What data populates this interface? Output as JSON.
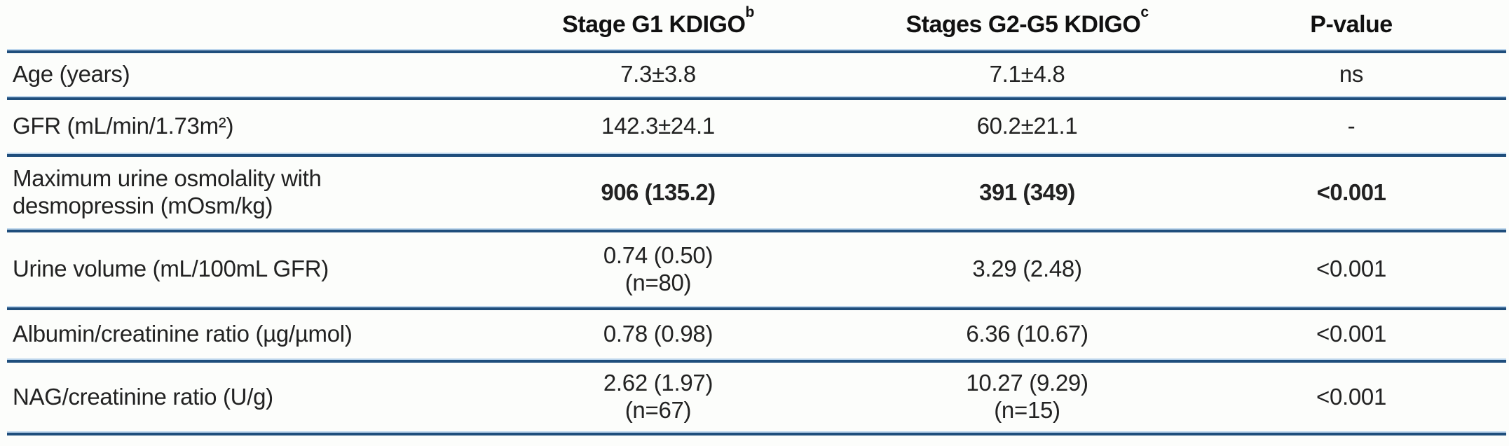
{
  "colors": {
    "rule_dark": "#1f4e7c",
    "rule_light": "#bcd5ec",
    "text": "#222222",
    "header_text": "#111111",
    "background": "#fcfdfb"
  },
  "table": {
    "headers": {
      "col1": "",
      "col2": {
        "text": "Stage G1 KDIGO",
        "sup": "b"
      },
      "col3": {
        "text": "Stages G2-G5 KDIGO",
        "sup": "c"
      },
      "col4": {
        "text": "P-value",
        "sup": ""
      }
    },
    "rows": [
      {
        "label": "Age (years)",
        "label2": "",
        "g1": "7.3±3.8",
        "g1b": "",
        "g25": "7.1±4.8",
        "g25b": "",
        "p": "ns",
        "pb": "",
        "emphasis": false
      },
      {
        "label": "GFR (mL/min/1.73m²)",
        "label2": "",
        "g1": "142.3±24.1",
        "g1b": "",
        "g25": "60.2±21.1",
        "g25b": "",
        "p": "-",
        "pb": "",
        "emphasis": false
      },
      {
        "label": "Maximum urine osmolality with",
        "label2": "desmopressin (mOsm/kg)",
        "g1": "906 (135.2)",
        "g1b": "",
        "g25": "391 (349)",
        "g25b": "",
        "p": "<0.001",
        "pb": "",
        "emphasis": true
      },
      {
        "label": "Urine volume (mL/100mL GFR)",
        "label2": "",
        "g1": "0.74 (0.50)",
        "g1b": "(n=80)",
        "g25": "3.29 (2.48)",
        "g25b": "",
        "p": "<0.001",
        "pb": "",
        "emphasis": false
      },
      {
        "label": "Albumin/creatinine ratio (µg/µmol)",
        "label2": "",
        "g1": "0.78 (0.98)",
        "g1b": "",
        "g25": "6.36 (10.67)",
        "g25b": "",
        "p": "<0.001",
        "pb": "",
        "emphasis": false
      },
      {
        "label": "NAG/creatinine ratio (U/g)",
        "label2": "",
        "g1": "2.62 (1.97)",
        "g1b": "(n=67)",
        "g25": "10.27 (9.29)",
        "g25b": "(n=15)",
        "p": "<0.001",
        "pb": "",
        "emphasis": false
      }
    ]
  }
}
